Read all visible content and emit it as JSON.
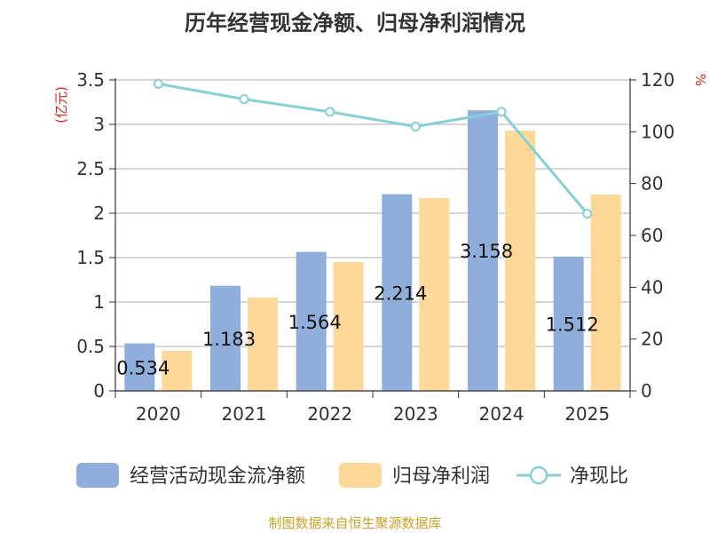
{
  "chart_data": {
    "type": "bar",
    "title": "历年经营现金净额、归母净利润情况",
    "y_left_label": "(亿元)",
    "y_right_label": "%",
    "categories": [
      "2020",
      "2021",
      "2022",
      "2023",
      "2024",
      "2025"
    ],
    "y_left_ticks": [
      "0",
      "0.5",
      "1",
      "1.5",
      "2",
      "2.5",
      "3",
      "3.5"
    ],
    "y_right_ticks": [
      "0",
      "20",
      "40",
      "60",
      "80",
      "100",
      "120"
    ],
    "ylim_left": [
      0,
      3.5
    ],
    "ylim_right": [
      0,
      120
    ],
    "grid": true,
    "legend_position": "bottom",
    "series": [
      {
        "name": "经营活动现金流净额",
        "kind": "bar",
        "axis": "left",
        "color": "#8faedc",
        "values": [
          0.534,
          1.183,
          1.564,
          2.214,
          3.158,
          1.512
        ],
        "labels": [
          "0.534",
          "1.183",
          "1.564",
          "2.214",
          "3.158",
          "1.512"
        ]
      },
      {
        "name": "归母净利润",
        "kind": "bar",
        "axis": "left",
        "color": "#fdd899",
        "values": [
          0.45,
          1.05,
          1.45,
          2.17,
          2.93,
          2.21
        ]
      },
      {
        "name": "净现比",
        "kind": "line",
        "axis": "right",
        "color": "#85d0d5",
        "values": [
          118.5,
          112.6,
          107.7,
          102.0,
          107.7,
          68.4
        ]
      }
    ]
  },
  "footer": {
    "source": "制图数据来自恒生聚源数据库",
    "color": "#c9a227"
  }
}
